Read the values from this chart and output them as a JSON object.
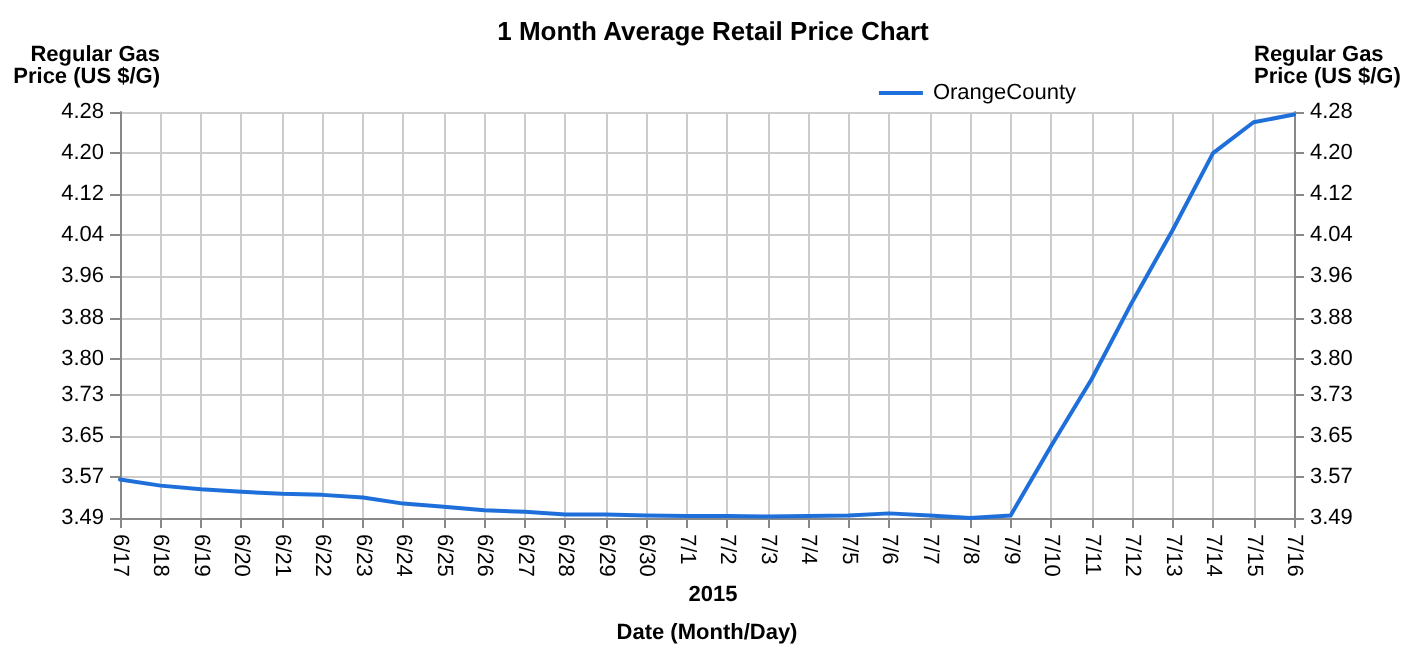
{
  "chart_data": {
    "type": "line",
    "title": "1 Month Average Retail Price Chart",
    "xlabel": "Date (Month/Day)",
    "ylabel": "Regular Gas\nPrice (US $/G)",
    "y2label": "Regular Gas\nPrice (US $/G)",
    "annotations": [
      "2015"
    ],
    "categories": [
      "6/17",
      "6/18",
      "6/19",
      "6/20",
      "6/21",
      "6/22",
      "6/23",
      "6/24",
      "6/25",
      "6/26",
      "6/27",
      "6/28",
      "6/29",
      "6/30",
      "7/1",
      "7/2",
      "7/3",
      "7/4",
      "7/5",
      "7/6",
      "7/7",
      "7/8",
      "7/9",
      "7/10",
      "7/11",
      "7/12",
      "7/13",
      "7/14",
      "7/15",
      "7/16"
    ],
    "series": [
      {
        "name": "OrangeCounty",
        "color": "#1e6fd9",
        "values": [
          3.565,
          3.553,
          3.546,
          3.541,
          3.537,
          3.535,
          3.53,
          3.518,
          3.512,
          3.505,
          3.502,
          3.497,
          3.497,
          3.495,
          3.494,
          3.494,
          3.493,
          3.494,
          3.495,
          3.499,
          3.495,
          3.49,
          3.495,
          3.63,
          3.76,
          3.91,
          4.05,
          4.2,
          4.26,
          4.275
        ]
      }
    ],
    "ylim": [
      3.49,
      4.28
    ],
    "yticks": [
      3.49,
      3.57,
      3.65,
      3.73,
      {
        "value": 3.8,
        "label": "3.80"
      },
      3.88,
      3.96,
      4.04,
      4.12,
      {
        "value": 4.2,
        "label": "4.20"
      },
      4.28
    ],
    "y2lim": [
      3.49,
      4.28
    ],
    "y2ticks": [
      3.49,
      3.57,
      3.65,
      3.73,
      {
        "value": 3.8,
        "label": "3.80"
      },
      3.88,
      3.96,
      4.04,
      4.12,
      {
        "value": 4.2,
        "label": "4.20"
      },
      4.28
    ],
    "grid": true,
    "legend": "top right",
    "marker": "none",
    "line_style": "solid"
  }
}
